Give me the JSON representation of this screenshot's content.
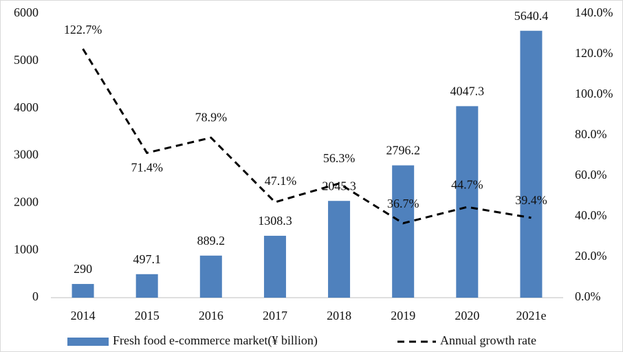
{
  "chart_data": {
    "type": "bar-line",
    "categories": [
      "2014",
      "2015",
      "2016",
      "2017",
      "2018",
      "2019",
      "2020",
      "2021e"
    ],
    "series": [
      {
        "name": "Fresh food e-commerce market(¥ billion)",
        "color": "#4f81bd",
        "type": "bar",
        "values": [
          290,
          497.1,
          889.2,
          1308.3,
          2045.3,
          2796.2,
          4047.3,
          5640.4
        ]
      },
      {
        "name": "Annual growth rate",
        "color": "#000000",
        "type": "line",
        "axis": "y2",
        "dash": true,
        "values": [
          122.7,
          71.4,
          78.9,
          47.1,
          56.3,
          36.7,
          44.7,
          39.4
        ],
        "value_labels": [
          "122.7%",
          "71.4%",
          "78.9%",
          "47.1%",
          "56.3%",
          "36.7%",
          "44.7%",
          "39.4%"
        ]
      }
    ],
    "ylim": [
      0,
      6000
    ],
    "yticks": [
      0,
      1000,
      2000,
      3000,
      4000,
      5000,
      6000
    ],
    "y2lim": [
      0,
      140
    ],
    "y2ticks": [
      {
        "value": 0,
        "label": "0.0%"
      },
      {
        "value": 20,
        "label": "20.0%"
      },
      {
        "value": 40,
        "label": "40.0%"
      },
      {
        "value": 60,
        "label": "60.0%"
      },
      {
        "value": 80,
        "label": "80.0%"
      },
      {
        "value": 100,
        "label": "100.0%"
      },
      {
        "value": 120,
        "label": "120.0%"
      },
      {
        "value": 140,
        "label": "140.0%"
      }
    ],
    "grid": false,
    "legend": "bottom"
  }
}
